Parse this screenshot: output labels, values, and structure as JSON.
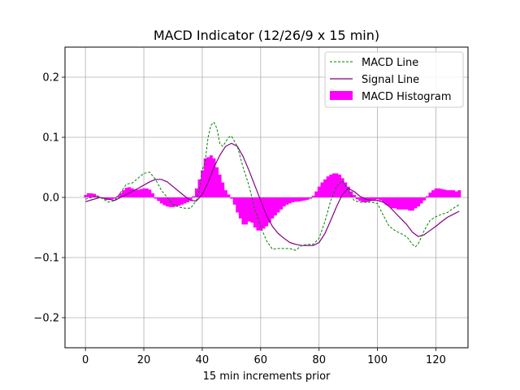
{
  "chart_data": {
    "type": "line",
    "title": "MACD Indicator (12/26/9 x 15 min)",
    "xlabel": "15 min increments prior",
    "ylabel": "",
    "xlim": [
      -7,
      131
    ],
    "ylim": [
      -0.25,
      0.25
    ],
    "xticks": [
      0,
      20,
      40,
      60,
      80,
      100,
      120
    ],
    "yticks": [
      -0.2,
      -0.1,
      0.0,
      0.1,
      0.2
    ],
    "ytick_labels": [
      "−0.2",
      "−0.1",
      "0.0",
      "0.1",
      "0.2"
    ],
    "grid": true,
    "legend_position": "top-right",
    "colors": {
      "macd": "#008000",
      "signal": "#800080",
      "histogram": "#ff00ff"
    },
    "series": [
      {
        "name": "MACD Line",
        "style": "dashed",
        "x": [
          0,
          4,
          8,
          10,
          12,
          14,
          16,
          18,
          20,
          22,
          24,
          26,
          28,
          30,
          32,
          34,
          36,
          38,
          39,
          40,
          41,
          42,
          43,
          44,
          45,
          46,
          47,
          48,
          49,
          50,
          52,
          54,
          56,
          58,
          60,
          62,
          64,
          66,
          68,
          70,
          72,
          74,
          76,
          78,
          80,
          82,
          84,
          86,
          88,
          90,
          92,
          94,
          96,
          98,
          100,
          102,
          104,
          106,
          108,
          110,
          112,
          113,
          114,
          116,
          118,
          120,
          122,
          124,
          126,
          128
        ],
        "values": [
          -0.003,
          0.003,
          -0.008,
          -0.005,
          0.008,
          0.022,
          0.024,
          0.032,
          0.04,
          0.042,
          0.03,
          0.012,
          0.0,
          -0.012,
          -0.016,
          -0.018,
          -0.018,
          -0.005,
          0.012,
          0.045,
          0.06,
          0.1,
          0.12,
          0.125,
          0.115,
          0.09,
          0.085,
          0.092,
          0.1,
          0.102,
          0.085,
          0.05,
          0.02,
          -0.02,
          -0.048,
          -0.072,
          -0.086,
          -0.085,
          -0.085,
          -0.085,
          -0.088,
          -0.08,
          -0.078,
          -0.078,
          -0.068,
          -0.04,
          -0.005,
          0.018,
          0.028,
          0.012,
          -0.005,
          -0.008,
          -0.008,
          -0.008,
          -0.01,
          -0.03,
          -0.048,
          -0.055,
          -0.06,
          -0.065,
          -0.078,
          -0.082,
          -0.077,
          -0.055,
          -0.038,
          -0.032,
          -0.028,
          -0.025,
          -0.018,
          -0.012
        ]
      },
      {
        "name": "Signal Line",
        "style": "solid",
        "x": [
          0,
          5,
          10,
          14,
          18,
          22,
          24,
          26,
          28,
          30,
          32,
          34,
          36,
          38,
          40,
          42,
          44,
          46,
          48,
          50,
          52,
          54,
          56,
          58,
          60,
          62,
          64,
          66,
          68,
          70,
          72,
          74,
          76,
          78,
          80,
          82,
          84,
          86,
          88,
          90,
          92,
          94,
          96,
          98,
          100,
          102,
          104,
          106,
          108,
          110,
          112,
          114,
          116,
          118,
          120,
          122,
          124,
          126,
          128
        ],
        "values": [
          -0.007,
          0.0,
          -0.005,
          0.005,
          0.015,
          0.026,
          0.03,
          0.03,
          0.026,
          0.018,
          0.01,
          0.002,
          -0.005,
          -0.006,
          0.005,
          0.025,
          0.05,
          0.07,
          0.085,
          0.09,
          0.085,
          0.068,
          0.045,
          0.02,
          -0.005,
          -0.03,
          -0.048,
          -0.06,
          -0.068,
          -0.075,
          -0.078,
          -0.08,
          -0.08,
          -0.08,
          -0.075,
          -0.06,
          -0.038,
          -0.015,
          0.005,
          0.015,
          0.01,
          0.002,
          -0.003,
          -0.005,
          -0.005,
          -0.008,
          -0.015,
          -0.025,
          -0.035,
          -0.045,
          -0.058,
          -0.065,
          -0.062,
          -0.055,
          -0.048,
          -0.04,
          -0.033,
          -0.028,
          -0.023
        ]
      },
      {
        "name": "MACD Histogram",
        "type": "bar",
        "x": [
          0,
          1,
          2,
          3,
          4,
          5,
          6,
          7,
          8,
          9,
          10,
          11,
          12,
          13,
          14,
          15,
          16,
          17,
          18,
          19,
          20,
          21,
          22,
          23,
          24,
          25,
          26,
          27,
          28,
          29,
          30,
          31,
          32,
          33,
          34,
          35,
          36,
          37,
          38,
          39,
          40,
          41,
          42,
          43,
          44,
          45,
          46,
          47,
          48,
          49,
          50,
          51,
          52,
          53,
          54,
          55,
          56,
          57,
          58,
          59,
          60,
          61,
          62,
          63,
          64,
          65,
          66,
          67,
          68,
          69,
          70,
          71,
          72,
          73,
          74,
          75,
          76,
          77,
          78,
          79,
          80,
          81,
          82,
          83,
          84,
          85,
          86,
          87,
          88,
          89,
          90,
          91,
          92,
          93,
          94,
          95,
          96,
          97,
          98,
          99,
          100,
          101,
          102,
          103,
          104,
          105,
          106,
          107,
          108,
          109,
          110,
          111,
          112,
          113,
          114,
          115,
          116,
          117,
          118,
          119,
          120,
          121,
          122,
          123,
          124,
          125,
          126,
          127,
          128
        ],
        "values": [
          0.004,
          0.007,
          0.007,
          0.006,
          0.003,
          0.0,
          -0.002,
          -0.004,
          -0.004,
          -0.003,
          -0.002,
          0.002,
          0.007,
          0.012,
          0.016,
          0.017,
          0.015,
          0.013,
          0.013,
          0.014,
          0.015,
          0.015,
          0.013,
          0.007,
          -0.002,
          -0.006,
          -0.01,
          -0.013,
          -0.015,
          -0.016,
          -0.016,
          -0.015,
          -0.014,
          -0.012,
          -0.01,
          -0.008,
          -0.005,
          0.002,
          0.015,
          0.03,
          0.045,
          0.065,
          0.067,
          0.07,
          0.065,
          0.05,
          0.038,
          0.025,
          0.012,
          0.005,
          -0.002,
          -0.012,
          -0.025,
          -0.035,
          -0.045,
          -0.045,
          -0.04,
          -0.042,
          -0.05,
          -0.055,
          -0.055,
          -0.052,
          -0.048,
          -0.042,
          -0.035,
          -0.03,
          -0.025,
          -0.02,
          -0.015,
          -0.012,
          -0.01,
          -0.008,
          -0.007,
          -0.007,
          -0.006,
          -0.005,
          -0.004,
          -0.002,
          0.003,
          0.01,
          0.018,
          0.025,
          0.03,
          0.035,
          0.038,
          0.04,
          0.04,
          0.038,
          0.032,
          0.025,
          0.018,
          0.01,
          0.004,
          -0.003,
          -0.006,
          -0.008,
          -0.008,
          -0.007,
          -0.005,
          -0.004,
          -0.003,
          -0.005,
          -0.008,
          -0.012,
          -0.015,
          -0.018,
          -0.018,
          -0.02,
          -0.02,
          -0.02,
          -0.02,
          -0.022,
          -0.022,
          -0.018,
          -0.015,
          -0.01,
          -0.005,
          0.002,
          0.008,
          0.012,
          0.015,
          0.015,
          0.014,
          0.013,
          0.012,
          0.012,
          0.012,
          0.01,
          0.012
        ]
      }
    ]
  }
}
